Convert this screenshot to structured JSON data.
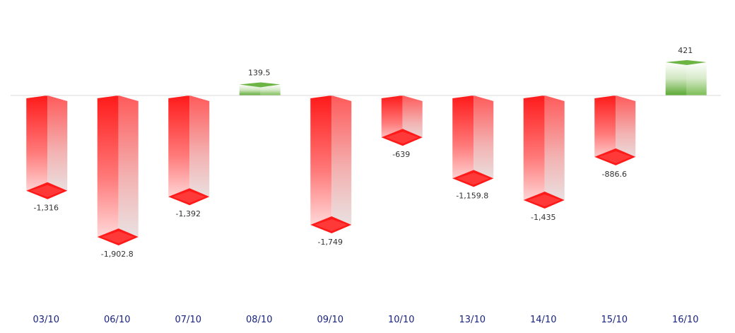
{
  "chart_data": {
    "type": "bar",
    "categories": [
      "03/10",
      "06/10",
      "07/10",
      "08/10",
      "09/10",
      "10/10",
      "13/10",
      "14/10",
      "15/10",
      "16/10"
    ],
    "values": [
      -1316,
      -1902.8,
      -1392,
      139.5,
      -1749,
      -639,
      -1159.8,
      -1435,
      -886.6,
      421
    ],
    "value_labels": [
      "-1,316",
      "-1,902.8",
      "-1,392",
      "139.5",
      "-1,749",
      "-639",
      "-1,159.8",
      "-1,435",
      "-886.6",
      "421"
    ],
    "title": "",
    "xlabel": "",
    "ylabel": "",
    "ylim": [
      -2400,
      600
    ],
    "grid": false,
    "legend": "none",
    "colors": {
      "negative": "#ff1a1a",
      "negative_fade": "#e8e8e8",
      "positive": "#5aa832",
      "positive_fade": "#f2f8ee",
      "baseline": "#d9d9d9",
      "category_text": "#1a237e"
    }
  }
}
